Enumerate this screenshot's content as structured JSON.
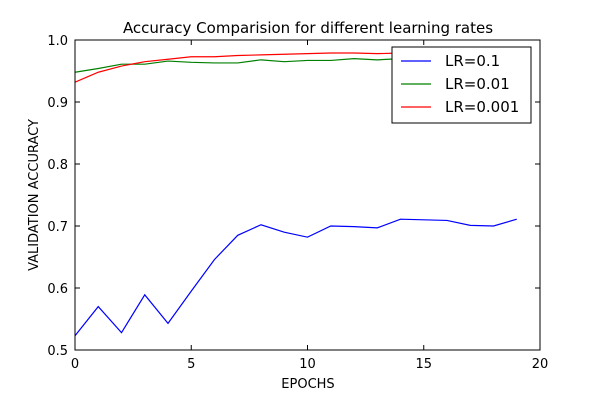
{
  "chart_data": {
    "type": "line",
    "title": "Accuracy Comparision for different learning rates",
    "xlabel": "EPOCHS",
    "ylabel": "VALIDATION ACCURACY",
    "xlim": [
      0,
      20
    ],
    "ylim": [
      0.5,
      1.0
    ],
    "xticks": [
      "0",
      "5",
      "10",
      "15",
      "20"
    ],
    "yticks": [
      "0.5",
      "0.6",
      "0.7",
      "0.8",
      "0.9",
      "1.0"
    ],
    "grid": false,
    "legend_position": "top-right",
    "x": [
      0,
      1,
      2,
      3,
      4,
      5,
      6,
      7,
      8,
      9,
      10,
      11,
      12,
      13,
      14,
      15,
      16,
      17,
      18,
      19
    ],
    "series": [
      {
        "name": "LR=0.1",
        "color": "#0000ff",
        "values": [
          0.523,
          0.57,
          0.528,
          0.589,
          0.543,
          0.595,
          0.646,
          0.685,
          0.702,
          0.69,
          0.682,
          0.7,
          0.699,
          0.697,
          0.711,
          0.71,
          0.709,
          0.701,
          0.7,
          0.711
        ]
      },
      {
        "name": "LR=0.01",
        "color": "#008000",
        "values": [
          0.948,
          0.954,
          0.961,
          0.961,
          0.966,
          0.964,
          0.963,
          0.963,
          0.968,
          0.965,
          0.967,
          0.967,
          0.97,
          0.968,
          0.97,
          0.971,
          0.971,
          0.972,
          0.971,
          0.972
        ]
      },
      {
        "name": "LR=0.001",
        "color": "#ff0000",
        "values": [
          0.932,
          0.948,
          0.958,
          0.965,
          0.969,
          0.973,
          0.973,
          0.975,
          0.976,
          0.977,
          0.978,
          0.979,
          0.979,
          0.978,
          0.979,
          0.98,
          0.98,
          0.98,
          0.98,
          0.98
        ]
      }
    ]
  }
}
